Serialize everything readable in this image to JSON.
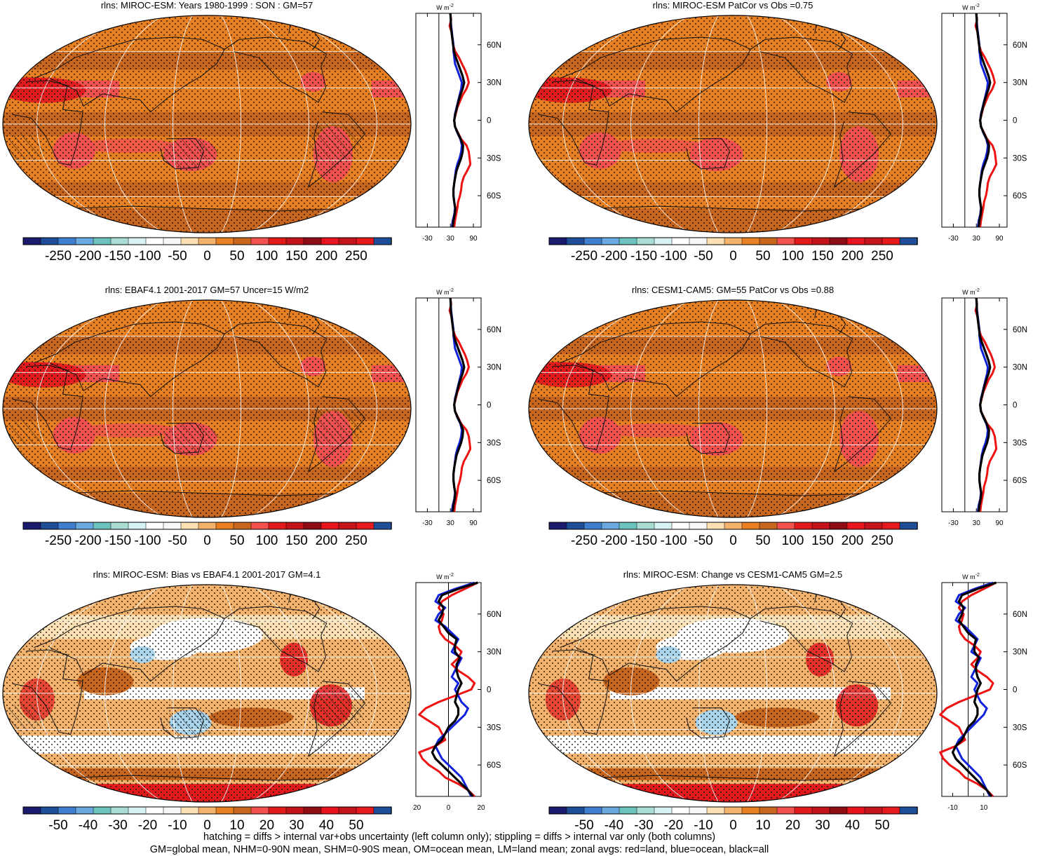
{
  "panels": [
    {
      "id": "p1",
      "title": "rlns: MIROC-ESM: Years 1980-1999 : SON : GM=57",
      "kind": "abs",
      "hatching": true,
      "colorbar_ticks": [
        "-250",
        "-200",
        "-150",
        "-100",
        "-50",
        "0",
        "50",
        "100",
        "150",
        "200",
        "250"
      ],
      "zonal_xticks": [
        "-30",
        "30",
        "90"
      ],
      "zonal_xvals": [
        -30,
        30,
        90
      ],
      "zonal_xlim": [
        -60,
        110
      ],
      "zonal_unit": "W m",
      "zonal_unit_sup": "-2"
    },
    {
      "id": "p2",
      "title": "rlns: MIROC-ESM PatCor vs Obs =0.75",
      "kind": "abs",
      "hatching": false,
      "colorbar_ticks": [
        "-250",
        "-200",
        "-150",
        "-100",
        "-50",
        "0",
        "50",
        "100",
        "150",
        "200",
        "250"
      ],
      "zonal_xticks": [
        "-30",
        "30",
        "90"
      ],
      "zonal_xvals": [
        -30,
        30,
        90
      ],
      "zonal_xlim": [
        -60,
        110
      ],
      "zonal_unit": "W m",
      "zonal_unit_sup": "-2"
    },
    {
      "id": "p3",
      "title": "rlns: EBAF4.1 2001-2017 GM=57 Uncer=15 W/m2",
      "kind": "abs",
      "hatching": true,
      "colorbar_ticks": [
        "-250",
        "-200",
        "-150",
        "-100",
        "-50",
        "0",
        "50",
        "100",
        "150",
        "200",
        "250"
      ],
      "zonal_xticks": [
        "-30",
        "30",
        "90"
      ],
      "zonal_xvals": [
        -30,
        30,
        90
      ],
      "zonal_xlim": [
        -60,
        110
      ],
      "zonal_unit": "W m",
      "zonal_unit_sup": "-2"
    },
    {
      "id": "p4",
      "title": "rlns: CESM1-CAM5: GM=55 PatCor vs Obs =0.88",
      "kind": "abs",
      "hatching": false,
      "colorbar_ticks": [
        "-250",
        "-200",
        "-150",
        "-100",
        "-50",
        "0",
        "50",
        "100",
        "150",
        "200",
        "250"
      ],
      "zonal_xticks": [
        "-30",
        "30",
        "90"
      ],
      "zonal_xvals": [
        -30,
        30,
        90
      ],
      "zonal_xlim": [
        -60,
        110
      ],
      "zonal_unit": "W m",
      "zonal_unit_sup": "-2"
    },
    {
      "id": "p5",
      "title": "rlns: MIROC-ESM: Bias vs EBAF4.1 2001-2017  GM=4.1",
      "kind": "diff",
      "hatching": true,
      "colorbar_ticks": [
        "-50",
        "-40",
        "-30",
        "-20",
        "-10",
        "0",
        "10",
        "20",
        "30",
        "40",
        "50"
      ],
      "zonal_xticks": [
        "-20",
        "0",
        "20"
      ],
      "zonal_xvals": [
        -20,
        0,
        20
      ],
      "zonal_xlim": [
        -20,
        20
      ],
      "zonal_unit": "W m",
      "zonal_unit_sup": "-2"
    },
    {
      "id": "p6",
      "title": "rlns: MIROC-ESM: Change vs CESM1-CAM5 GM=2.5",
      "kind": "diff",
      "hatching": false,
      "colorbar_ticks": [
        "-50",
        "-40",
        "-30",
        "-20",
        "-10",
        "0",
        "10",
        "20",
        "30",
        "40",
        "50"
      ],
      "zonal_xticks": [
        "-10",
        "10"
      ],
      "zonal_xvals": [
        -10,
        10
      ],
      "zonal_xlim": [
        -17,
        25
      ],
      "zonal_unit": "W m",
      "zonal_unit_sup": "-2"
    }
  ],
  "lat_labels": [
    "60N",
    "30N",
    "0",
    "30S",
    "60S"
  ],
  "lat_values": [
    60,
    30,
    0,
    -30,
    -60
  ],
  "colorbar_colors": [
    "#1a1a6e",
    "#1f4e99",
    "#3f7fcf",
    "#6aa8e0",
    "#6cc3bd",
    "#a9dcd3",
    "#d7f2f3",
    "#ffffff",
    "#f7f7f7",
    "#fbe0b4",
    "#f4b36d",
    "#e88021",
    "#c9661e",
    "#f2514f",
    "#e31a1c",
    "#c4121a",
    "#8e0c12",
    "#e8131c",
    "#c4131a",
    "#e6191e",
    "#1f4e99"
  ],
  "palette": {
    "orange": "#e88021",
    "dark_orange": "#c9661e",
    "light_red": "#f2514f",
    "red": "#e31a1c",
    "light_orange": "#f4b36d",
    "peach": "#fbe0b4",
    "white": "#ffffff",
    "light_blue": "#a9d4ec",
    "blue": "#3f7fcf"
  },
  "zonal_line_colors": {
    "land": "#ee1111",
    "ocean": "#1122dd",
    "all": "#000000"
  },
  "footnote": {
    "line1": "hatching = diffs > internal var+obs uncertainty (left column only); stippling = diffs > internal var only (both columns)",
    "line2": "GM=global mean, NHM=0-90N mean, SHM=0-90S mean, OM=ocean mean, LM=land mean; zonal avgs: red=land, blue=ocean, black=all"
  },
  "zonal_profiles": {
    "abs": {
      "lat": [
        85,
        80,
        75,
        70,
        65,
        60,
        55,
        50,
        45,
        40,
        35,
        30,
        25,
        20,
        15,
        10,
        5,
        0,
        -5,
        -10,
        -15,
        -20,
        -25,
        -30,
        -35,
        -40,
        -45,
        -50,
        -55,
        -60,
        -65,
        -70,
        -75,
        -80,
        -85
      ],
      "land": [
        30,
        32,
        28,
        33,
        35,
        37,
        42,
        52,
        60,
        68,
        74,
        78,
        72,
        62,
        55,
        48,
        44,
        40,
        42,
        50,
        58,
        72,
        78,
        80,
        82,
        74,
        65,
        60,
        58,
        55,
        50,
        48,
        45,
        42,
        40
      ],
      "ocean": [
        30,
        31,
        32,
        34,
        36,
        38,
        38,
        40,
        42,
        48,
        54,
        60,
        58,
        54,
        50,
        46,
        42,
        40,
        42,
        48,
        56,
        60,
        58,
        54,
        48,
        44,
        42,
        40,
        38,
        38,
        40,
        42,
        40,
        36,
        34
      ],
      "all": [
        30,
        31,
        31,
        33,
        35,
        37,
        39,
        44,
        50,
        56,
        62,
        66,
        62,
        56,
        51,
        47,
        43,
        40,
        42,
        49,
        57,
        63,
        62,
        58,
        52,
        46,
        43,
        40,
        38,
        38,
        40,
        43,
        41,
        38,
        36
      ]
    },
    "diff": {
      "lat": [
        85,
        80,
        75,
        70,
        65,
        60,
        55,
        50,
        45,
        40,
        35,
        30,
        25,
        20,
        15,
        10,
        5,
        0,
        -5,
        -10,
        -15,
        -20,
        -25,
        -30,
        -35,
        -40,
        -45,
        -50,
        -55,
        -60,
        -65,
        -70,
        -75,
        -80,
        -85
      ],
      "land": [
        18,
        10,
        2,
        -4,
        -6,
        -3,
        -4,
        -6,
        -5,
        -2,
        4,
        8,
        6,
        2,
        6,
        12,
        16,
        14,
        4,
        -6,
        -14,
        -18,
        -12,
        -6,
        -4,
        -2,
        -8,
        -18,
        -16,
        -12,
        -6,
        -2,
        6,
        12,
        16
      ],
      "ocean": [
        16,
        4,
        -6,
        -8,
        -2,
        -6,
        -8,
        -2,
        2,
        6,
        4,
        2,
        8,
        6,
        4,
        2,
        6,
        4,
        6,
        8,
        12,
        10,
        6,
        2,
        -2,
        -6,
        -8,
        -6,
        -4,
        0,
        4,
        8,
        10,
        12,
        14
      ],
      "all": [
        18,
        6,
        -4,
        -6,
        -3,
        -4,
        -6,
        -3,
        0,
        5,
        4,
        4,
        7,
        5,
        5,
        6,
        8,
        6,
        5,
        4,
        6,
        6,
        4,
        0,
        -2,
        -4,
        -8,
        -10,
        -8,
        -4,
        0,
        4,
        8,
        12,
        15
      ]
    }
  }
}
